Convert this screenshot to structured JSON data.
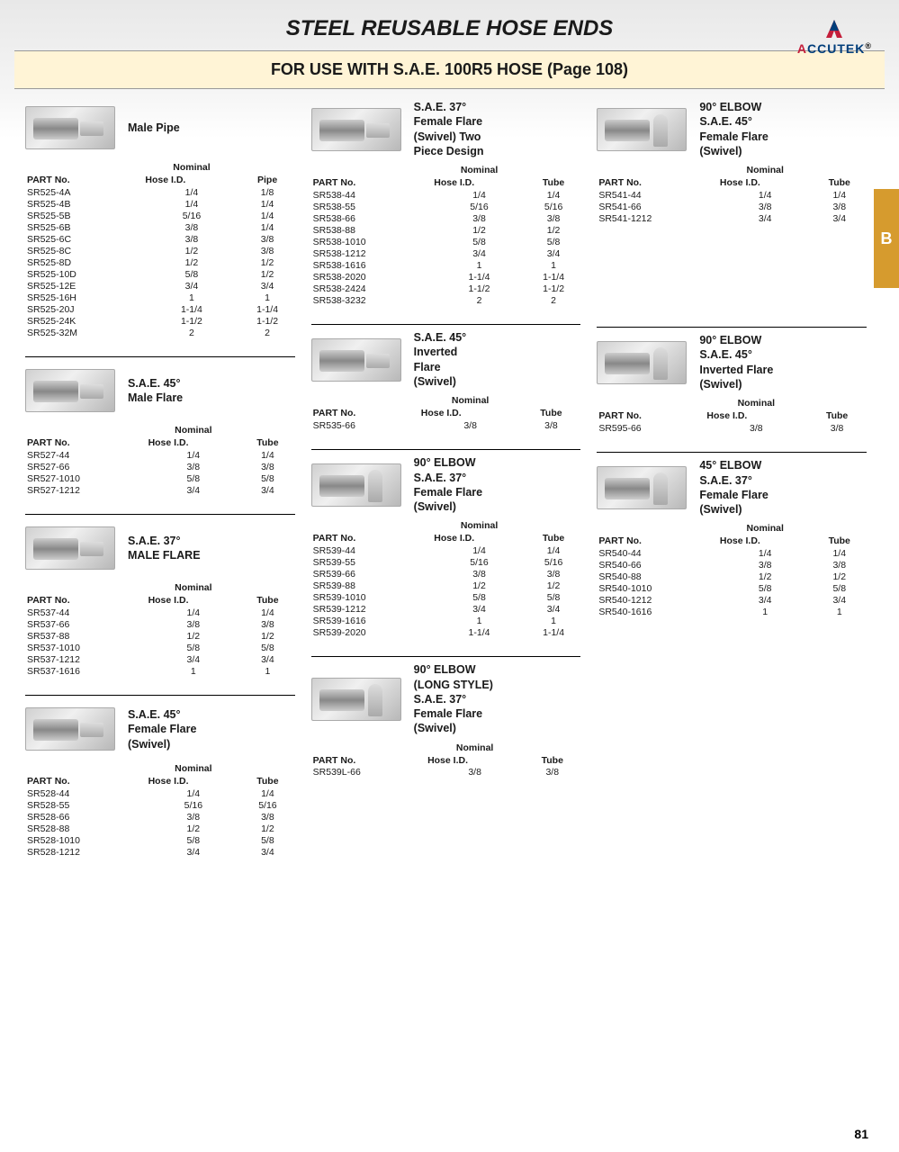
{
  "page": {
    "title": "STEEL REUSABLE HOSE ENDS",
    "banner": "FOR USE WITH S.A.E. 100R5 HOSE (Page 108)",
    "pageNumber": "81",
    "tabLetter": "B"
  },
  "logo": {
    "brand_a": "A",
    "brand_rest": "CCUTEK",
    "reg": "®"
  },
  "headers": {
    "part": "PART No.",
    "nominal": "Nominal",
    "hose": "Hose I.D.",
    "pipe": "Pipe",
    "tube": "Tube"
  },
  "sections": {
    "s1": {
      "title": "Male Pipe",
      "col3": "pipe",
      "rows": [
        [
          "SR525-4A",
          "1/4",
          "1/8"
        ],
        [
          "SR525-4B",
          "1/4",
          "1/4"
        ],
        [
          "SR525-5B",
          "5/16",
          "1/4"
        ],
        [
          "SR525-6B",
          "3/8",
          "1/4"
        ],
        [
          "SR525-6C",
          "3/8",
          "3/8"
        ],
        [
          "SR525-8C",
          "1/2",
          "3/8"
        ],
        [
          "SR525-8D",
          "1/2",
          "1/2"
        ],
        [
          "SR525-10D",
          "5/8",
          "1/2"
        ],
        [
          "SR525-12E",
          "3/4",
          "3/4"
        ],
        [
          "SR525-16H",
          "1",
          "1"
        ],
        [
          "SR525-20J",
          "1-1/4",
          "1-1/4"
        ],
        [
          "SR525-24K",
          "1-1/2",
          "1-1/2"
        ],
        [
          "SR525-32M",
          "2",
          "2"
        ]
      ]
    },
    "s2": {
      "title": "S.A.E. 45°\nMale Flare",
      "rows": [
        [
          "SR527-44",
          "1/4",
          "1/4"
        ],
        [
          "SR527-66",
          "3/8",
          "3/8"
        ],
        [
          "SR527-1010",
          "5/8",
          "5/8"
        ],
        [
          "SR527-1212",
          "3/4",
          "3/4"
        ]
      ]
    },
    "s3": {
      "title": "S.A.E. 37°\nMALE FLARE",
      "rows": [
        [
          "SR537-44",
          "1/4",
          "1/4"
        ],
        [
          "SR537-66",
          "3/8",
          "3/8"
        ],
        [
          "SR537-88",
          "1/2",
          "1/2"
        ],
        [
          "SR537-1010",
          "5/8",
          "5/8"
        ],
        [
          "SR537-1212",
          "3/4",
          "3/4"
        ],
        [
          "SR537-1616",
          "1",
          "1"
        ]
      ]
    },
    "s4": {
      "title": "S.A.E. 45°\nFemale Flare\n(Swivel)",
      "rows": [
        [
          "SR528-44",
          "1/4",
          "1/4"
        ],
        [
          "SR528-55",
          "5/16",
          "5/16"
        ],
        [
          "SR528-66",
          "3/8",
          "3/8"
        ],
        [
          "SR528-88",
          "1/2",
          "1/2"
        ],
        [
          "SR528-1010",
          "5/8",
          "5/8"
        ],
        [
          "SR528-1212",
          "3/4",
          "3/4"
        ]
      ]
    },
    "s5": {
      "title": "S.A.E. 37°\nFemale Flare\n(Swivel) Two\nPiece Design",
      "rows": [
        [
          "SR538-44",
          "1/4",
          "1/4"
        ],
        [
          "SR538-55",
          "5/16",
          "5/16"
        ],
        [
          "SR538-66",
          "3/8",
          "3/8"
        ],
        [
          "SR538-88",
          "1/2",
          "1/2"
        ],
        [
          "SR538-1010",
          "5/8",
          "5/8"
        ],
        [
          "SR538-1212",
          "3/4",
          "3/4"
        ],
        [
          "SR538-1616",
          "1",
          "1"
        ],
        [
          "SR538-2020",
          "1-1/4",
          "1-1/4"
        ],
        [
          "SR538-2424",
          "1-1/2",
          "1-1/2"
        ],
        [
          "SR538-3232",
          "2",
          "2"
        ]
      ]
    },
    "s6": {
      "title": "S.A.E. 45°\nInverted\nFlare\n(Swivel)",
      "rows": [
        [
          "SR535-66",
          "3/8",
          "3/8"
        ]
      ]
    },
    "s7": {
      "title": "90° ELBOW\nS.A.E. 37°\nFemale Flare\n(Swivel)",
      "rows": [
        [
          "SR539-44",
          "1/4",
          "1/4"
        ],
        [
          "SR539-55",
          "5/16",
          "5/16"
        ],
        [
          "SR539-66",
          "3/8",
          "3/8"
        ],
        [
          "SR539-88",
          "1/2",
          "1/2"
        ],
        [
          "SR539-1010",
          "5/8",
          "5/8"
        ],
        [
          "SR539-1212",
          "3/4",
          "3/4"
        ],
        [
          "SR539-1616",
          "1",
          "1"
        ],
        [
          "SR539-2020",
          "1-1/4",
          "1-1/4"
        ]
      ]
    },
    "s8": {
      "title": "90° ELBOW\n(LONG STYLE)\nS.A.E. 37°\nFemale Flare\n(Swivel)",
      "rows": [
        [
          "SR539L-66",
          "3/8",
          "3/8"
        ]
      ]
    },
    "s9": {
      "title": "90° ELBOW\nS.A.E. 45°\nFemale Flare\n(Swivel)",
      "rows": [
        [
          "SR541-44",
          "1/4",
          "1/4"
        ],
        [
          "SR541-66",
          "3/8",
          "3/8"
        ],
        [
          "SR541-1212",
          "3/4",
          "3/4"
        ]
      ]
    },
    "s10": {
      "title": "90° ELBOW\nS.A.E. 45°\nInverted Flare\n(Swivel)",
      "rows": [
        [
          "SR595-66",
          "3/8",
          "3/8"
        ]
      ]
    },
    "s11": {
      "title": "45° ELBOW\nS.A.E. 37°\nFemale Flare\n(Swivel)",
      "rows": [
        [
          "SR540-44",
          "1/4",
          "1/4"
        ],
        [
          "SR540-66",
          "3/8",
          "3/8"
        ],
        [
          "SR540-88",
          "1/2",
          "1/2"
        ],
        [
          "SR540-1010",
          "5/8",
          "5/8"
        ],
        [
          "SR540-1212",
          "3/4",
          "3/4"
        ],
        [
          "SR540-1616",
          "1",
          "1"
        ]
      ]
    }
  }
}
